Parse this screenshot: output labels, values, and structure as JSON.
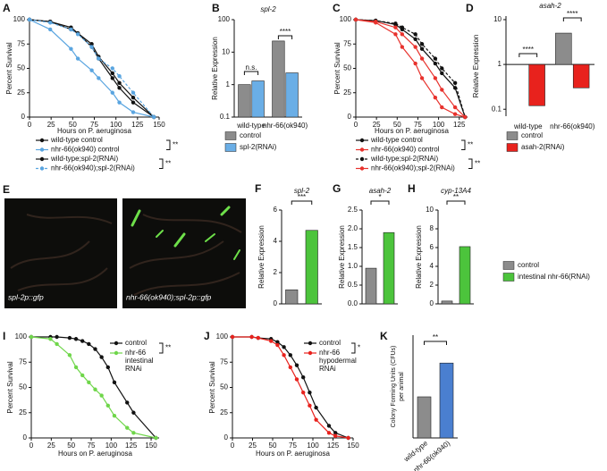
{
  "chart_data": [
    {
      "panel": "A",
      "type": "line",
      "xlabel": "Hours on P. aeruginosa",
      "ylabel": "Percent Survival",
      "x": [
        0,
        24,
        48,
        56,
        72,
        80,
        96,
        104,
        120,
        144
      ],
      "xlim": [
        0,
        150
      ],
      "xticks": [
        0,
        25,
        50,
        75,
        100,
        125,
        150
      ],
      "ylim": [
        0,
        100
      ],
      "yticks": [
        0,
        25,
        50,
        75,
        100
      ],
      "series": [
        {
          "name": "wild-type control",
          "color": "#111111",
          "values": [
            100,
            98,
            90,
            86,
            72,
            60,
            40,
            30,
            15,
            0
          ]
        },
        {
          "name": "nhr-66(ok940) control",
          "color": "#5aa5e0",
          "values": [
            100,
            90,
            70,
            60,
            48,
            40,
            25,
            15,
            5,
            0
          ]
        },
        {
          "name": "wild-type;spl-2(RNAi)",
          "color": "#111111",
          "values": [
            100,
            98,
            92,
            86,
            75,
            62,
            45,
            35,
            20,
            0
          ]
        },
        {
          "name": "nhr-66(ok940);spl-2(RNAi)",
          "color": "#5aa5e0",
          "dashed": true,
          "values": [
            100,
            97,
            90,
            85,
            72,
            60,
            50,
            42,
            25,
            0
          ]
        }
      ],
      "annotations": [
        "**",
        "**"
      ]
    },
    {
      "panel": "B",
      "type": "bar",
      "title": "spl-2",
      "ylabel": "Relative Expression",
      "yscale": "log",
      "ylim": [
        0.1,
        100
      ],
      "yticks": [
        0.1,
        1,
        10,
        100
      ],
      "categories": [
        "wild-type",
        "nhr-66(ok940)"
      ],
      "series": [
        {
          "name": "control",
          "color": "#8c8c8c",
          "values": [
            1,
            22
          ]
        },
        {
          "name": "spl-2(RNAi)",
          "color": "#6aaee6",
          "values": [
            1.3,
            2.3
          ]
        }
      ],
      "annotations": [
        "n.s.",
        "****"
      ]
    },
    {
      "panel": "C",
      "type": "line",
      "xlabel": "Hours on P. aeruginosa",
      "ylabel": "Percent Survival",
      "x": [
        0,
        24,
        48,
        56,
        72,
        80,
        96,
        104,
        120,
        132
      ],
      "xlim": [
        0,
        135
      ],
      "xticks": [
        0,
        25,
        50,
        75,
        100,
        125
      ],
      "ylim": [
        0,
        100
      ],
      "yticks": [
        0,
        25,
        50,
        75,
        100
      ],
      "series": [
        {
          "name": "wild-type control",
          "color": "#111111",
          "values": [
            100,
            99,
            95,
            90,
            80,
            70,
            55,
            45,
            30,
            0
          ]
        },
        {
          "name": "nhr-66(ok940) control",
          "color": "#e8322d",
          "values": [
            100,
            97,
            85,
            72,
            55,
            40,
            20,
            10,
            3,
            0
          ]
        },
        {
          "name": "wild-type;spl-2(RNAi)",
          "color": "#111111",
          "dashed": true,
          "values": [
            100,
            99,
            96,
            92,
            85,
            75,
            60,
            50,
            35,
            0
          ]
        },
        {
          "name": "nhr-66(ok940);spl-2(RNAi)",
          "color": "#e8322d",
          "values": [
            100,
            98,
            92,
            85,
            72,
            60,
            40,
            28,
            10,
            0
          ]
        }
      ],
      "annotations": [
        "**",
        "**"
      ]
    },
    {
      "panel": "D",
      "type": "bar",
      "title": "asah-2",
      "ylabel": "Relative Expression",
      "yscale": "log",
      "ylim": [
        0.07,
        12
      ],
      "yticks": [
        0.1,
        1,
        10
      ],
      "bar_baseline": 1,
      "categories": [
        "wild-type",
        "nhr-66(ok940)"
      ],
      "series": [
        {
          "name": "control",
          "color": "#8c8c8c",
          "values": [
            1,
            5
          ]
        },
        {
          "name": "asah-2(RNAi)",
          "color": "#e8221d",
          "values": [
            0.12,
            0.3
          ]
        }
      ],
      "annotations": [
        "****",
        "****"
      ]
    },
    {
      "panel": "E",
      "type": "micrograph",
      "captions": [
        "spl-2p::gfp",
        "nhr-66(ok940);spl-2p::gfp"
      ]
    },
    {
      "panel": "F",
      "type": "bar",
      "title": "spl-2",
      "ylabel": "Relative Expression",
      "ylim": [
        0,
        6
      ],
      "yticks": [
        0,
        2,
        4,
        6
      ],
      "values": [
        0.9,
        4.7
      ],
      "colors": [
        "#8c8c8c",
        "#4cc43c"
      ],
      "annotations": [
        "***"
      ]
    },
    {
      "panel": "G",
      "type": "bar",
      "title": "asah-2",
      "ylabel": "Relative Expression",
      "ylim": [
        0,
        2.5
      ],
      "yticks": [
        {
          "value": 0,
          "label": "0.0"
        },
        0.5,
        {
          "value": 1,
          "label": "1.0"
        },
        1.5,
        {
          "value": 2,
          "label": "2.0"
        },
        2.5
      ],
      "values": [
        0.95,
        1.9
      ],
      "colors": [
        "#8c8c8c",
        "#4cc43c"
      ],
      "annotations": [
        "*"
      ]
    },
    {
      "panel": "H",
      "type": "bar",
      "title": "cyp-13A4",
      "ylabel": "Relative Expression",
      "ylim": [
        0,
        10
      ],
      "yticks": [
        0,
        2,
        4,
        6,
        8,
        10
      ],
      "values": [
        0.3,
        6.1
      ],
      "colors": [
        "#8c8c8c",
        "#4cc43c"
      ],
      "annotations": [
        "**"
      ],
      "legend": {
        "entries": [
          {
            "name": "control",
            "color": "#8c8c8c"
          },
          {
            "name": "intestinal nhr-66(RNAi)",
            "color": "#4cc43c"
          }
        ]
      }
    },
    {
      "panel": "I",
      "type": "line",
      "xlabel": "Hours on P. aeruginosa",
      "ylabel": "Percent Survival",
      "x": [
        0,
        24,
        32,
        48,
        56,
        64,
        72,
        80,
        88,
        96,
        104,
        120,
        128,
        156
      ],
      "xlim": [
        0,
        160
      ],
      "xticks": [
        0,
        25,
        50,
        75,
        100,
        125,
        150
      ],
      "ylim": [
        0,
        100
      ],
      "yticks": [
        0,
        25,
        50,
        75,
        100
      ],
      "series": [
        {
          "name": "control",
          "color": "#111111",
          "values": [
            100,
            100,
            100,
            99,
            98,
            96,
            93,
            88,
            80,
            70,
            55,
            35,
            25,
            0
          ]
        },
        {
          "name": "nhr-66 intestinal RNAi",
          "color": "#6fd64a",
          "values": [
            100,
            98,
            93,
            82,
            70,
            62,
            55,
            48,
            42,
            32,
            22,
            10,
            5,
            0
          ]
        }
      ],
      "annotations": [
        "**"
      ]
    },
    {
      "panel": "J",
      "type": "line",
      "xlabel": "Hours on P. aeruginosa",
      "ylabel": "Percent Survival",
      "x": [
        0,
        24,
        32,
        48,
        56,
        64,
        72,
        80,
        88,
        96,
        104,
        120,
        128,
        144
      ],
      "xlim": [
        0,
        150
      ],
      "xticks": [
        0,
        25,
        50,
        75,
        100,
        125,
        150
      ],
      "ylim": [
        0,
        100
      ],
      "yticks": [
        0,
        25,
        50,
        75,
        100
      ],
      "series": [
        {
          "name": "control",
          "color": "#111111",
          "values": [
            100,
            100,
            99,
            98,
            95,
            90,
            82,
            72,
            60,
            45,
            30,
            12,
            5,
            0
          ]
        },
        {
          "name": "nhr-66 hypodermal RNAi",
          "color": "#e8221d",
          "values": [
            100,
            100,
            99,
            96,
            92,
            82,
            70,
            58,
            45,
            32,
            18,
            5,
            2,
            0
          ]
        }
      ],
      "annotations": [
        "*"
      ]
    },
    {
      "panel": "K",
      "type": "bar",
      "ylabel": [
        "Colony Forming Units (CFUs)",
        "per animal"
      ],
      "ylim": [
        0,
        1400
      ],
      "categories": [
        "wild-type",
        "nhr-66(ok940)"
      ],
      "values": [
        560,
        1020
      ],
      "colors": [
        "#8c8c8c",
        "#4a7fd0"
      ],
      "annotations": [
        "**"
      ]
    }
  ]
}
